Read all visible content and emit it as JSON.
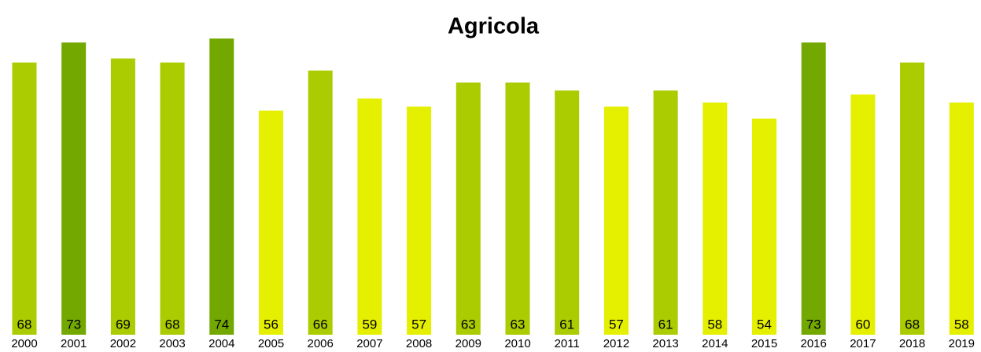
{
  "chart_data": {
    "type": "bar",
    "title": "Agricola",
    "categories": [
      "2000",
      "2001",
      "2002",
      "2003",
      "2004",
      "2005",
      "2006",
      "2007",
      "2008",
      "2009",
      "2010",
      "2011",
      "2012",
      "2013",
      "2014",
      "2015",
      "2016",
      "2017",
      "2018",
      "2019"
    ],
    "values": [
      68,
      73,
      69,
      68,
      74,
      56,
      66,
      59,
      57,
      63,
      63,
      61,
      57,
      61,
      58,
      54,
      73,
      60,
      68,
      58
    ],
    "colors": [
      "#aacc00",
      "#72a800",
      "#aacc00",
      "#aacc00",
      "#72a800",
      "#e5ef00",
      "#aacc00",
      "#e5ef00",
      "#e5ef00",
      "#aacc00",
      "#aacc00",
      "#aacc00",
      "#e5ef00",
      "#aacc00",
      "#e5ef00",
      "#e5ef00",
      "#72a800",
      "#e5ef00",
      "#aacc00",
      "#e5ef00"
    ]
  }
}
